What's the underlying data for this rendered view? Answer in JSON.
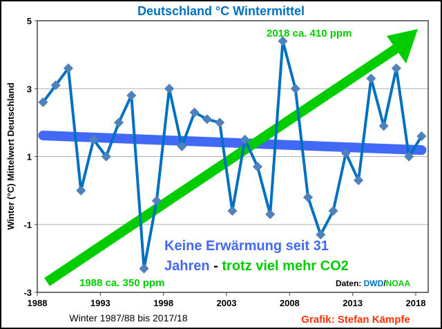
{
  "chart_data": {
    "type": "line",
    "title": "Deutschland °C Wintermittel",
    "xlabel": "Winter 1987/88 bis 2017/18",
    "ylabel": "Winter (°C) Mittelwert Deutschland",
    "xlim": [
      1988,
      2018
    ],
    "ylim": [
      -3,
      5
    ],
    "x_ticks": [
      "1988",
      "1993",
      "1998",
      "2003",
      "2008",
      "2013",
      "2018"
    ],
    "y_ticks": [
      "-3",
      "-1",
      "1",
      "3",
      "5"
    ],
    "grid": "horizontal",
    "x": [
      1988,
      1989,
      1990,
      1991,
      1992,
      1993,
      1994,
      1995,
      1996,
      1997,
      1998,
      1999,
      2000,
      2001,
      2002,
      2003,
      2004,
      2005,
      2006,
      2007,
      2008,
      2009,
      2010,
      2011,
      2012,
      2013,
      2014,
      2015,
      2016,
      2017,
      2018
    ],
    "values": [
      2.6,
      3.1,
      3.6,
      0.0,
      1.5,
      1.0,
      2.0,
      2.8,
      -2.3,
      -0.3,
      3.0,
      1.3,
      2.3,
      2.1,
      2.0,
      -0.6,
      1.5,
      0.7,
      -0.7,
      4.4,
      3.0,
      -0.2,
      -1.3,
      -0.6,
      1.1,
      0.3,
      3.3,
      1.9,
      3.6,
      1.0,
      1.6
    ],
    "trend": {
      "start": 1.62,
      "end": 1.19
    },
    "colors": {
      "series": "#0070c0",
      "markers": "#4f81bd",
      "trend": "#4169f5",
      "co2": "#00cc00",
      "credit": "#ff3300",
      "title": "#0070c0"
    },
    "annotations": {
      "co2_start": "1988 ca. 350 ppm",
      "co2_end": "2018 ca. 410 ppm",
      "note_line1": "Keine Erwärmung seit 31",
      "note_line2_a": "Jahren",
      "note_line2_b": " - ",
      "note_line2_c": "trotz viel mehr CO2",
      "source_label": "Daten: ",
      "source_a": "DWD",
      "source_sep": "/",
      "source_b": "NOAA",
      "credit": "Grafik: Stefan Kämpfe"
    }
  }
}
